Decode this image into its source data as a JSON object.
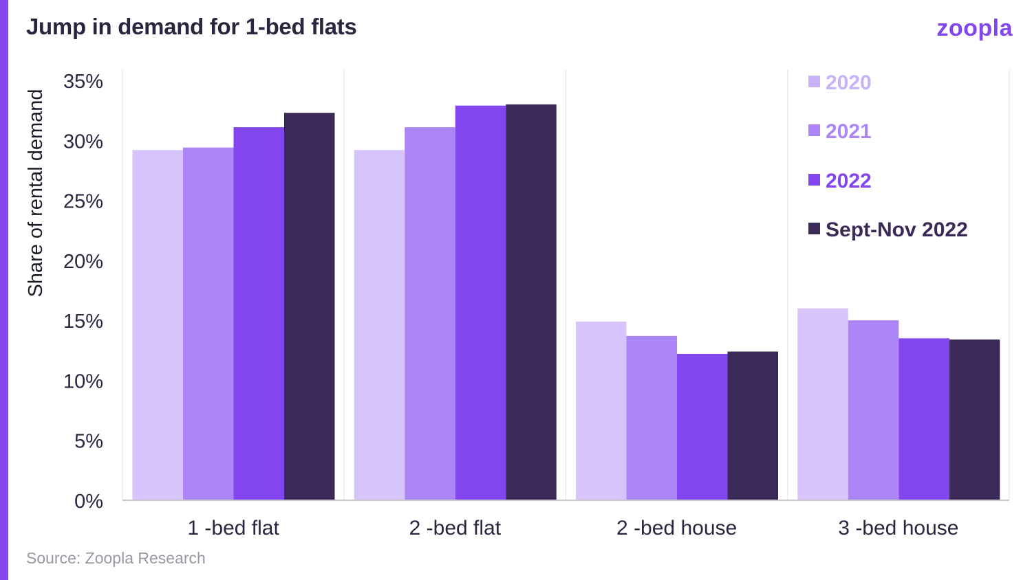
{
  "header": {
    "title": "Jump in demand for 1-bed flats",
    "logo_text": "zoopla"
  },
  "footer": {
    "source": "Source: Zoopla Research"
  },
  "colors": {
    "accent": "#8246ef",
    "text": "#2b2540",
    "source": "#9a97a3"
  },
  "chart_data": {
    "type": "bar",
    "title": "Jump in demand for 1-bed flats",
    "ylabel": "Share of rental demand",
    "xlabel": "",
    "ylim": [
      0,
      35
    ],
    "y_ticks": [
      "0%",
      "5%",
      "10%",
      "15%",
      "20%",
      "25%",
      "30%",
      "35%"
    ],
    "categories": [
      "1 -bed flat",
      "2 -bed flat",
      "2 -bed house",
      "3 -bed house"
    ],
    "series": [
      {
        "name": "2020",
        "color": "#d6c4fb",
        "legend_color": "#c8b3f8",
        "values": [
          29.2,
          29.2,
          14.9,
          16.0
        ]
      },
      {
        "name": "2021",
        "color": "#ac86f7",
        "legend_color": "#ac86f7",
        "values": [
          29.4,
          31.1,
          13.7,
          15.0
        ]
      },
      {
        "name": "2022",
        "color": "#8246ef",
        "legend_color": "#8246ef",
        "values": [
          31.1,
          32.9,
          12.2,
          13.5
        ]
      },
      {
        "name": "Sept-Nov 2022",
        "color": "#3b2a57",
        "legend_color": "#3b2a57",
        "values": [
          32.3,
          33.0,
          12.4,
          13.4
        ]
      }
    ],
    "grid": {
      "x_separators": true,
      "y_grid": false
    },
    "legend_position": "top-right"
  }
}
